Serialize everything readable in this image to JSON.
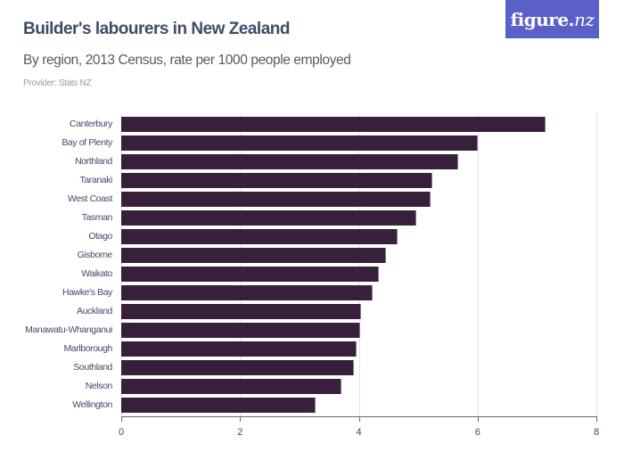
{
  "header": {
    "title": "Builder's labourers in New Zealand",
    "subtitle": "By region, 2013 Census, rate per 1000 people employed",
    "provider": "Provider: Stats NZ",
    "logo_main": "figure.",
    "logo_nz": "nz"
  },
  "colors": {
    "bar": "#381f3c",
    "title": "#3d4c66",
    "logo_bg": "#5a60c8"
  },
  "chart_data": {
    "type": "bar",
    "orientation": "horizontal",
    "title": "Builder's labourers in New Zealand",
    "subtitle": "By region, 2013 Census, rate per 1000 people employed",
    "xlabel": "",
    "ylabel": "",
    "xlim": [
      0,
      8
    ],
    "xticks": [
      "0",
      "2",
      "4",
      "6",
      "8"
    ],
    "grid": true,
    "legend": null,
    "categories": [
      "Canterbury",
      "Bay of Plenty",
      "Northland",
      "Taranaki",
      "West Coast",
      "Tasman",
      "Otago",
      "Gisborne",
      "Waikato",
      "Hawke's Bay",
      "Auckland",
      "Manawatu-Whanganui",
      "Marlborough",
      "Southland",
      "Nelson",
      "Wellington"
    ],
    "values": [
      7.15,
      6.01,
      5.68,
      5.24,
      5.21,
      4.97,
      4.65,
      4.46,
      4.34,
      4.23,
      4.04,
      4.02,
      3.96,
      3.92,
      3.71,
      3.27
    ]
  }
}
